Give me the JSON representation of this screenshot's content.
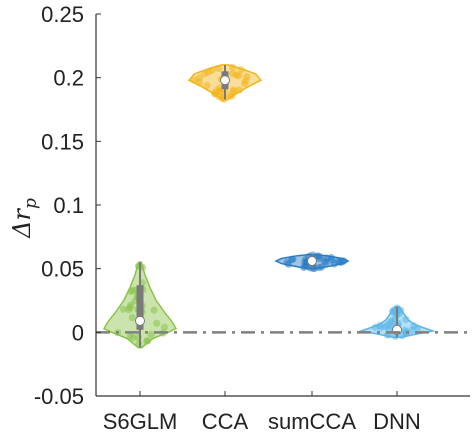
{
  "chart_data": {
    "type": "violin",
    "categories": [
      "S6GLM",
      "CCA",
      "sumCCA",
      "DNN"
    ],
    "ylabel": "Δr_p",
    "ylabel_parts": {
      "base": "Δr",
      "sub": "p"
    },
    "ylim": [
      -0.05,
      0.25
    ],
    "yticks": [
      -0.05,
      0,
      0.05,
      0.1,
      0.15,
      0.2,
      0.25
    ],
    "ytick_labels": [
      "-0.05",
      "0",
      "0.05",
      "0.1",
      "0.15",
      "0.2",
      "0.25"
    ],
    "reference_line": {
      "y": 0,
      "style": "dash-dot",
      "color": "#808080"
    },
    "grid": false,
    "series": [
      {
        "category": "S6GLM",
        "color": "#8bc34a",
        "median": 0.009,
        "q1": 0.002,
        "q3": 0.037,
        "min": -0.012,
        "max": 0.055,
        "density": [
          [
            -0.012,
            0.05
          ],
          [
            -0.005,
            0.35
          ],
          [
            0.0,
            0.78
          ],
          [
            0.003,
            1.0
          ],
          [
            0.008,
            0.9
          ],
          [
            0.015,
            0.7
          ],
          [
            0.025,
            0.45
          ],
          [
            0.035,
            0.28
          ],
          [
            0.045,
            0.14
          ],
          [
            0.055,
            0.04
          ]
        ]
      },
      {
        "category": "CCA",
        "color": "#f2b51c",
        "median": 0.198,
        "q1": 0.191,
        "q3": 0.205,
        "min": 0.183,
        "max": 0.21,
        "density": [
          [
            0.183,
            0.08
          ],
          [
            0.188,
            0.35
          ],
          [
            0.193,
            0.65
          ],
          [
            0.198,
            1.0
          ],
          [
            0.203,
            0.85
          ],
          [
            0.207,
            0.45
          ],
          [
            0.21,
            0.1
          ]
        ]
      },
      {
        "category": "sumCCA",
        "color": "#2a7dc4",
        "median": 0.056,
        "q1": 0.053,
        "q3": 0.058,
        "min": 0.05,
        "max": 0.061,
        "density": [
          [
            0.05,
            0.12
          ],
          [
            0.052,
            0.5
          ],
          [
            0.054,
            0.85
          ],
          [
            0.056,
            1.0
          ],
          [
            0.058,
            0.85
          ],
          [
            0.06,
            0.45
          ],
          [
            0.061,
            0.1
          ]
        ]
      },
      {
        "category": "DNN",
        "color": "#5bb7e8",
        "median": 0.002,
        "q1": 0.0,
        "q3": 0.005,
        "min": -0.004,
        "max": 0.02,
        "density": [
          [
            -0.004,
            0.1
          ],
          [
            -0.001,
            0.6
          ],
          [
            0.001,
            1.0
          ],
          [
            0.003,
            0.8
          ],
          [
            0.006,
            0.5
          ],
          [
            0.01,
            0.3
          ],
          [
            0.015,
            0.18
          ],
          [
            0.02,
            0.06
          ]
        ]
      }
    ]
  }
}
